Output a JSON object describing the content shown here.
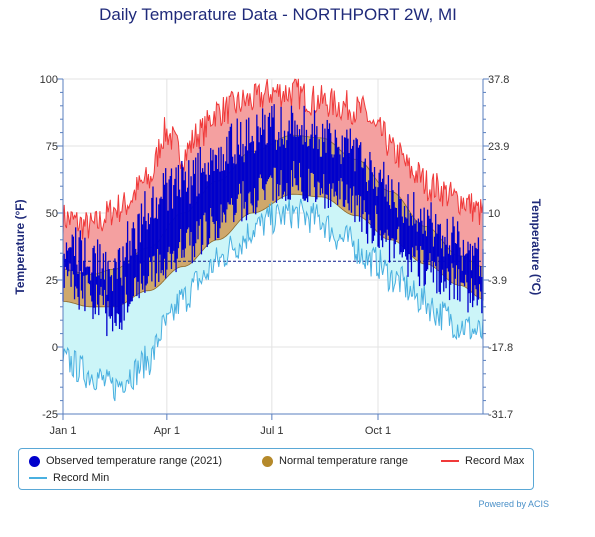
{
  "chart_data": {
    "type": "area",
    "title": "Daily Temperature Data - NORTHPORT 2W, MI",
    "ylabel": "Temperature (°F)",
    "y2label": "Temperature (°C)",
    "ylim": [
      -25,
      100
    ],
    "y_ticks": [
      100,
      75,
      50,
      25,
      0,
      -25
    ],
    "y2_ticks": [
      "37.8",
      "23.9",
      "10",
      "-3.9",
      "-17.8",
      "-31.7"
    ],
    "x_ticks": [
      {
        "label": "Jan 1",
        "day": 1
      },
      {
        "label": "Apr 1",
        "day": 91
      },
      {
        "label": "Jul 1",
        "day": 182
      },
      {
        "label": "Oct 1",
        "day": 274
      }
    ],
    "reference_line_value": 32,
    "grid": true,
    "series": [
      {
        "name": "Observed temperature range (2021)",
        "color": "#0000cc",
        "low_knots": [
          [
            1,
            25
          ],
          [
            30,
            18
          ],
          [
            45,
            8
          ],
          [
            60,
            22
          ],
          [
            90,
            32
          ],
          [
            110,
            38
          ],
          [
            130,
            45
          ],
          [
            160,
            55
          ],
          [
            182,
            60
          ],
          [
            200,
            62
          ],
          [
            220,
            60
          ],
          [
            245,
            55
          ],
          [
            270,
            45
          ],
          [
            290,
            38
          ],
          [
            310,
            30
          ],
          [
            335,
            25
          ],
          [
            365,
            18
          ]
        ],
        "high_knots": [
          [
            1,
            38
          ],
          [
            30,
            32
          ],
          [
            45,
            25
          ],
          [
            60,
            40
          ],
          [
            80,
            55
          ],
          [
            90,
            58
          ],
          [
            110,
            62
          ],
          [
            130,
            70
          ],
          [
            160,
            78
          ],
          [
            182,
            82
          ],
          [
            200,
            82
          ],
          [
            220,
            80
          ],
          [
            245,
            75
          ],
          [
            270,
            65
          ],
          [
            290,
            55
          ],
          [
            310,
            48
          ],
          [
            335,
            40
          ],
          [
            365,
            32
          ]
        ]
      },
      {
        "name": "Normal temperature range",
        "color": "#b5892a",
        "low_knots": [
          [
            1,
            17
          ],
          [
            25,
            15
          ],
          [
            45,
            15
          ],
          [
            75,
            21
          ],
          [
            105,
            30
          ],
          [
            135,
            40
          ],
          [
            165,
            50
          ],
          [
            200,
            57
          ],
          [
            225,
            56
          ],
          [
            255,
            49
          ],
          [
            285,
            40
          ],
          [
            315,
            31
          ],
          [
            345,
            23
          ],
          [
            365,
            18
          ]
        ],
        "high_knots": [
          [
            1,
            29
          ],
          [
            25,
            27
          ],
          [
            45,
            29
          ],
          [
            75,
            37
          ],
          [
            105,
            50
          ],
          [
            135,
            62
          ],
          [
            165,
            73
          ],
          [
            200,
            79
          ],
          [
            225,
            78
          ],
          [
            255,
            70
          ],
          [
            285,
            58
          ],
          [
            315,
            45
          ],
          [
            345,
            34
          ],
          [
            365,
            30
          ]
        ]
      },
      {
        "name": "Record Max",
        "color": "#f03a3a",
        "fill": "#f4a0a0",
        "knots": [
          [
            1,
            48
          ],
          [
            25,
            45
          ],
          [
            50,
            52
          ],
          [
            75,
            62
          ],
          [
            90,
            80
          ],
          [
            105,
            72
          ],
          [
            120,
            80
          ],
          [
            135,
            88
          ],
          [
            165,
            92
          ],
          [
            182,
            95
          ],
          [
            200,
            95
          ],
          [
            220,
            92
          ],
          [
            245,
            90
          ],
          [
            260,
            88
          ],
          [
            275,
            80
          ],
          [
            290,
            72
          ],
          [
            305,
            65
          ],
          [
            320,
            60
          ],
          [
            345,
            55
          ],
          [
            365,
            50
          ]
        ]
      },
      {
        "name": "Record Min",
        "color": "#4ab0e0",
        "fill": "#ccf5f8",
        "knots": [
          [
            1,
            -5
          ],
          [
            25,
            -10
          ],
          [
            45,
            -15
          ],
          [
            60,
            -10
          ],
          [
            75,
            -5
          ],
          [
            90,
            8
          ],
          [
            105,
            18
          ],
          [
            120,
            25
          ],
          [
            135,
            32
          ],
          [
            150,
            38
          ],
          [
            170,
            45
          ],
          [
            182,
            48
          ],
          [
            200,
            50
          ],
          [
            220,
            48
          ],
          [
            245,
            40
          ],
          [
            270,
            32
          ],
          [
            290,
            25
          ],
          [
            310,
            18
          ],
          [
            330,
            12
          ],
          [
            345,
            8
          ],
          [
            365,
            5
          ]
        ]
      }
    ]
  },
  "legend": {
    "observed": "Observed temperature range (2021)",
    "normal": "Normal temperature range",
    "record_max": "Record Max",
    "record_min": "Record Min"
  },
  "credit": "Powered by ACIS"
}
